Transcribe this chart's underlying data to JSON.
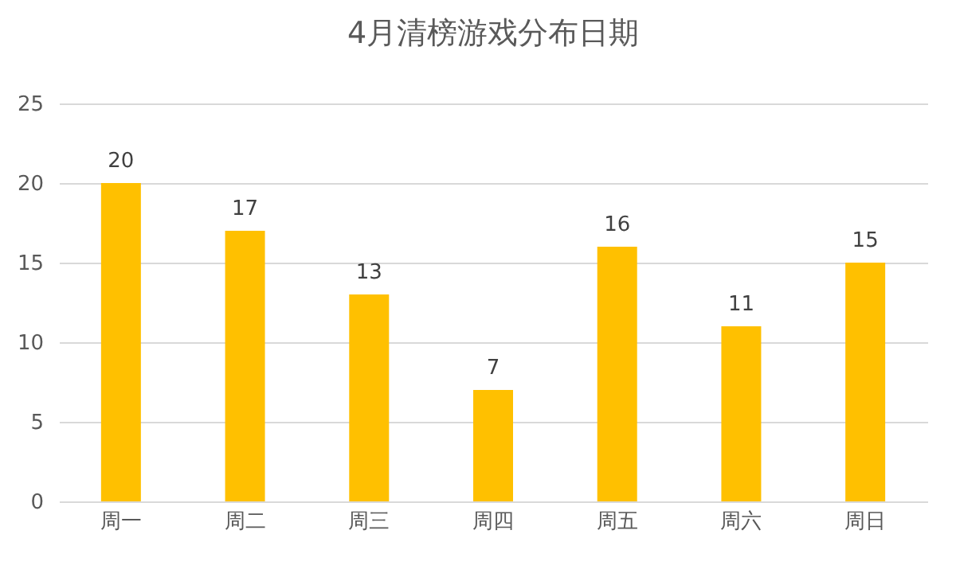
{
  "chart_data": {
    "type": "bar",
    "title": "4月清榜游戏分布日期",
    "categories": [
      "周一",
      "周二",
      "周三",
      "周四",
      "周五",
      "周六",
      "周日"
    ],
    "values": [
      20,
      17,
      13,
      7,
      16,
      11,
      15
    ],
    "color": "#ffc000",
    "ylim": [
      0,
      25
    ],
    "yticks": [
      0,
      5,
      10,
      15,
      20,
      25
    ],
    "grid": "y",
    "data_labels": true
  }
}
